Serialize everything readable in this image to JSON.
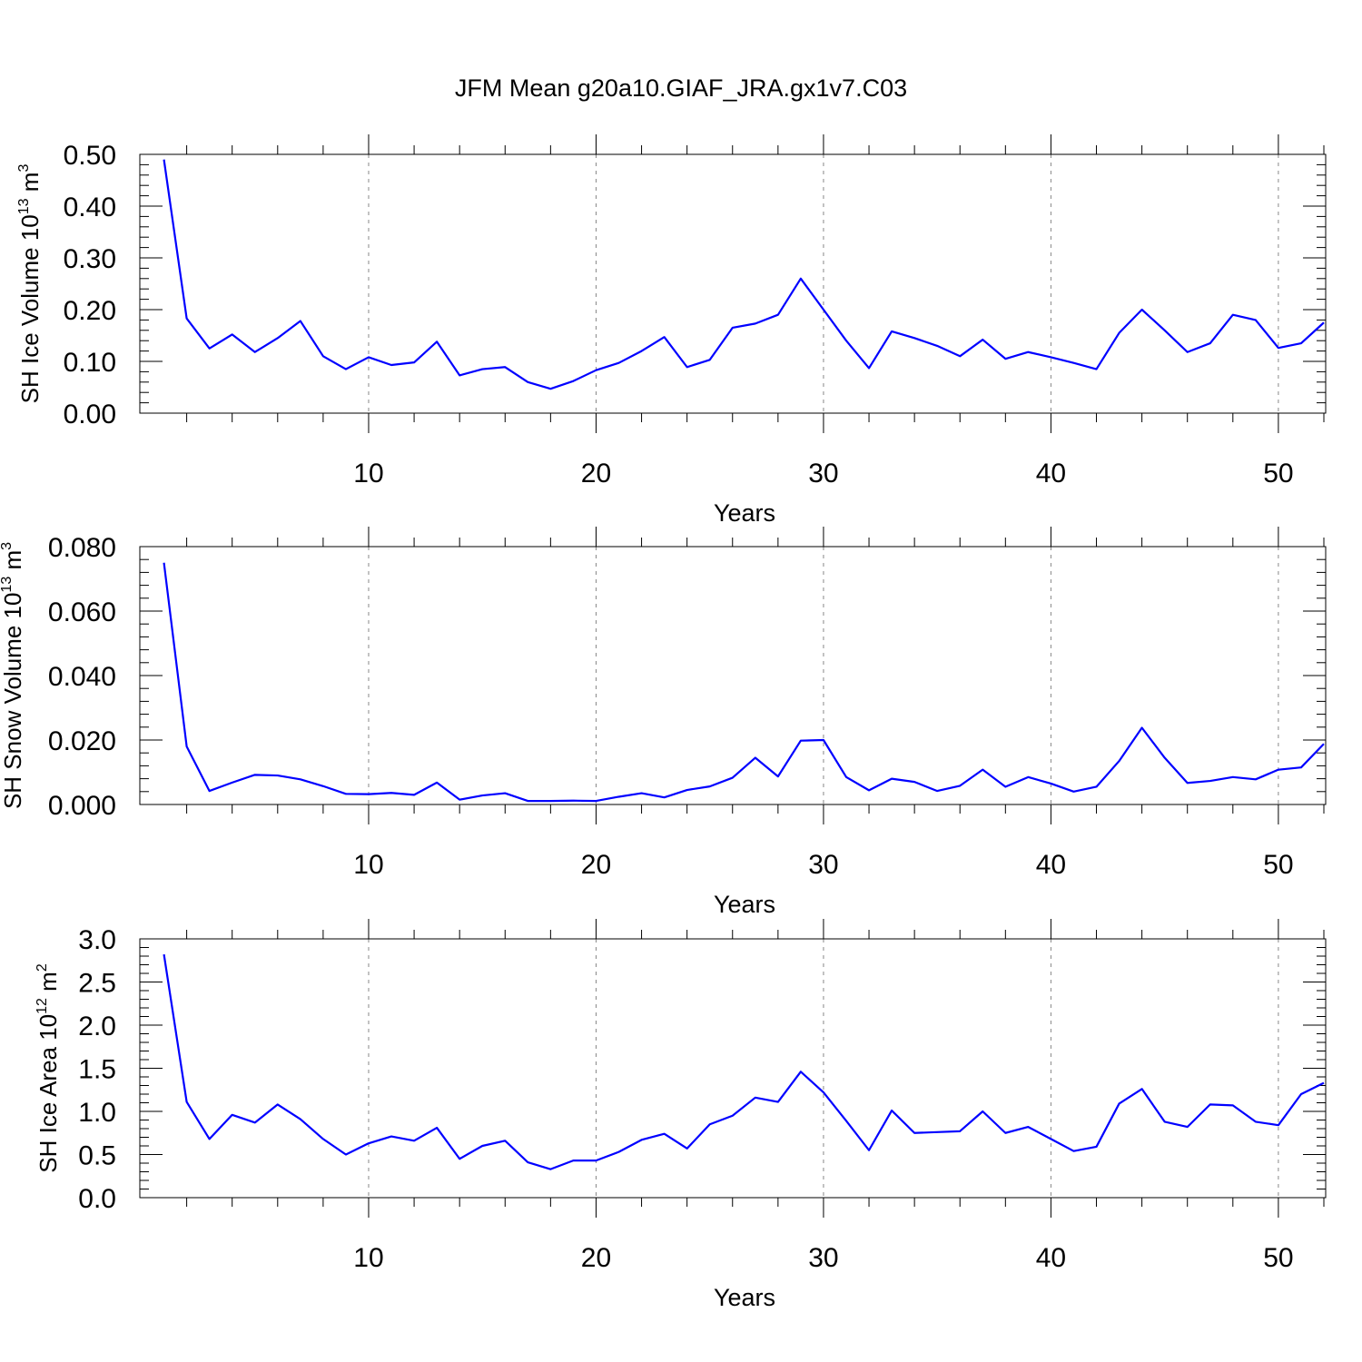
{
  "title": "JFM Mean g20a10.GIAF_JRA.gx1v7.C03",
  "line_color": "#0000ff",
  "chart_data": [
    {
      "type": "line",
      "ylabel": "SH Ice Volume 10",
      "ylabel_exp": "13",
      "ylabel_unit": " m",
      "ylabel_unit_exp": "3",
      "xlabel": "Years",
      "xlim": [
        1,
        52
      ],
      "ylim": [
        0.0,
        0.5
      ],
      "xticks": [
        10,
        20,
        30,
        40,
        50
      ],
      "xtick_labels": [
        "10",
        "20",
        "30",
        "40",
        "50"
      ],
      "yticks": [
        0.0,
        0.1,
        0.2,
        0.3,
        0.4,
        0.5
      ],
      "ytick_labels": [
        "0.00",
        "0.10",
        "0.20",
        "0.30",
        "0.40",
        "0.50"
      ],
      "grid": "vertical-dashed",
      "x": [
        1,
        2,
        3,
        4,
        5,
        6,
        7,
        8,
        9,
        10,
        11,
        12,
        13,
        14,
        15,
        16,
        17,
        18,
        19,
        20,
        21,
        22,
        23,
        24,
        25,
        26,
        27,
        28,
        29,
        30,
        31,
        32,
        33,
        34,
        35,
        36,
        37,
        38,
        39,
        40,
        41,
        42,
        43,
        44,
        45,
        46,
        47,
        48,
        49,
        50,
        51,
        52
      ],
      "values": [
        0.49,
        0.183,
        0.125,
        0.152,
        0.118,
        0.145,
        0.178,
        0.11,
        0.085,
        0.108,
        0.093,
        0.098,
        0.138,
        0.073,
        0.085,
        0.089,
        0.06,
        0.047,
        0.062,
        0.083,
        0.097,
        0.12,
        0.147,
        0.089,
        0.103,
        0.165,
        0.173,
        0.19,
        0.26,
        0.2,
        0.14,
        0.087,
        0.158,
        0.145,
        0.13,
        0.11,
        0.142,
        0.105,
        0.118,
        0.108,
        0.097,
        0.085,
        0.155,
        0.2,
        0.16,
        0.118,
        0.135,
        0.19,
        0.18,
        0.126,
        0.135,
        0.175
      ]
    },
    {
      "type": "line",
      "ylabel": "SH Snow Volume 10",
      "ylabel_exp": "13",
      "ylabel_unit": " m",
      "ylabel_unit_exp": "3",
      "xlabel": "Years",
      "xlim": [
        1,
        52
      ],
      "ylim": [
        0.0,
        0.08
      ],
      "xticks": [
        10,
        20,
        30,
        40,
        50
      ],
      "xtick_labels": [
        "10",
        "20",
        "30",
        "40",
        "50"
      ],
      "yticks": [
        0.0,
        0.02,
        0.04,
        0.06,
        0.08
      ],
      "ytick_labels": [
        "0.000",
        "0.020",
        "0.040",
        "0.060",
        "0.080"
      ],
      "grid": "vertical-dashed",
      "x": [
        1,
        2,
        3,
        4,
        5,
        6,
        7,
        8,
        9,
        10,
        11,
        12,
        13,
        14,
        15,
        16,
        17,
        18,
        19,
        20,
        21,
        22,
        23,
        24,
        25,
        26,
        27,
        28,
        29,
        30,
        31,
        32,
        33,
        34,
        35,
        36,
        37,
        38,
        39,
        40,
        41,
        42,
        43,
        44,
        45,
        46,
        47,
        48,
        49,
        50,
        51,
        52
      ],
      "values": [
        0.075,
        0.018,
        0.0042,
        0.0068,
        0.0092,
        0.009,
        0.0078,
        0.0057,
        0.0033,
        0.0032,
        0.0036,
        0.003,
        0.0068,
        0.0015,
        0.0028,
        0.0035,
        0.0011,
        0.0011,
        0.0012,
        0.0011,
        0.0024,
        0.0035,
        0.0022,
        0.0045,
        0.0056,
        0.0083,
        0.0145,
        0.0087,
        0.0198,
        0.02,
        0.0085,
        0.0044,
        0.008,
        0.007,
        0.0042,
        0.0058,
        0.0108,
        0.0055,
        0.0085,
        0.0065,
        0.004,
        0.0055,
        0.0135,
        0.0238,
        0.0145,
        0.0067,
        0.0073,
        0.0085,
        0.0078,
        0.0108,
        0.0115,
        0.0188
      ]
    },
    {
      "type": "line",
      "ylabel": "SH Ice Area 10",
      "ylabel_exp": "12",
      "ylabel_unit": " m",
      "ylabel_unit_exp": "2",
      "xlabel": "Years",
      "xlim": [
        1,
        52
      ],
      "ylim": [
        0.0,
        3.0
      ],
      "xticks": [
        10,
        20,
        30,
        40,
        50
      ],
      "xtick_labels": [
        "10",
        "20",
        "30",
        "40",
        "50"
      ],
      "yticks": [
        0.0,
        0.5,
        1.0,
        1.5,
        2.0,
        2.5,
        3.0
      ],
      "ytick_labels": [
        "0.0",
        "0.5",
        "1.0",
        "1.5",
        "2.0",
        "2.5",
        "3.0"
      ],
      "grid": "vertical-dashed",
      "x": [
        1,
        2,
        3,
        4,
        5,
        6,
        7,
        8,
        9,
        10,
        11,
        12,
        13,
        14,
        15,
        16,
        17,
        18,
        19,
        20,
        21,
        22,
        23,
        24,
        25,
        26,
        27,
        28,
        29,
        30,
        31,
        32,
        33,
        34,
        35,
        36,
        37,
        38,
        39,
        40,
        41,
        42,
        43,
        44,
        45,
        46,
        47,
        48,
        49,
        50,
        51,
        52
      ],
      "values": [
        2.82,
        1.11,
        0.68,
        0.96,
        0.87,
        1.08,
        0.91,
        0.68,
        0.5,
        0.63,
        0.71,
        0.66,
        0.81,
        0.45,
        0.6,
        0.66,
        0.41,
        0.33,
        0.43,
        0.43,
        0.53,
        0.67,
        0.74,
        0.57,
        0.85,
        0.95,
        1.16,
        1.11,
        1.46,
        1.22,
        0.89,
        0.55,
        1.01,
        0.75,
        0.76,
        0.77,
        1.0,
        0.75,
        0.82,
        0.68,
        0.54,
        0.59,
        1.09,
        1.26,
        0.88,
        0.82,
        1.08,
        1.07,
        0.88,
        0.84,
        1.2,
        1.33
      ]
    }
  ]
}
